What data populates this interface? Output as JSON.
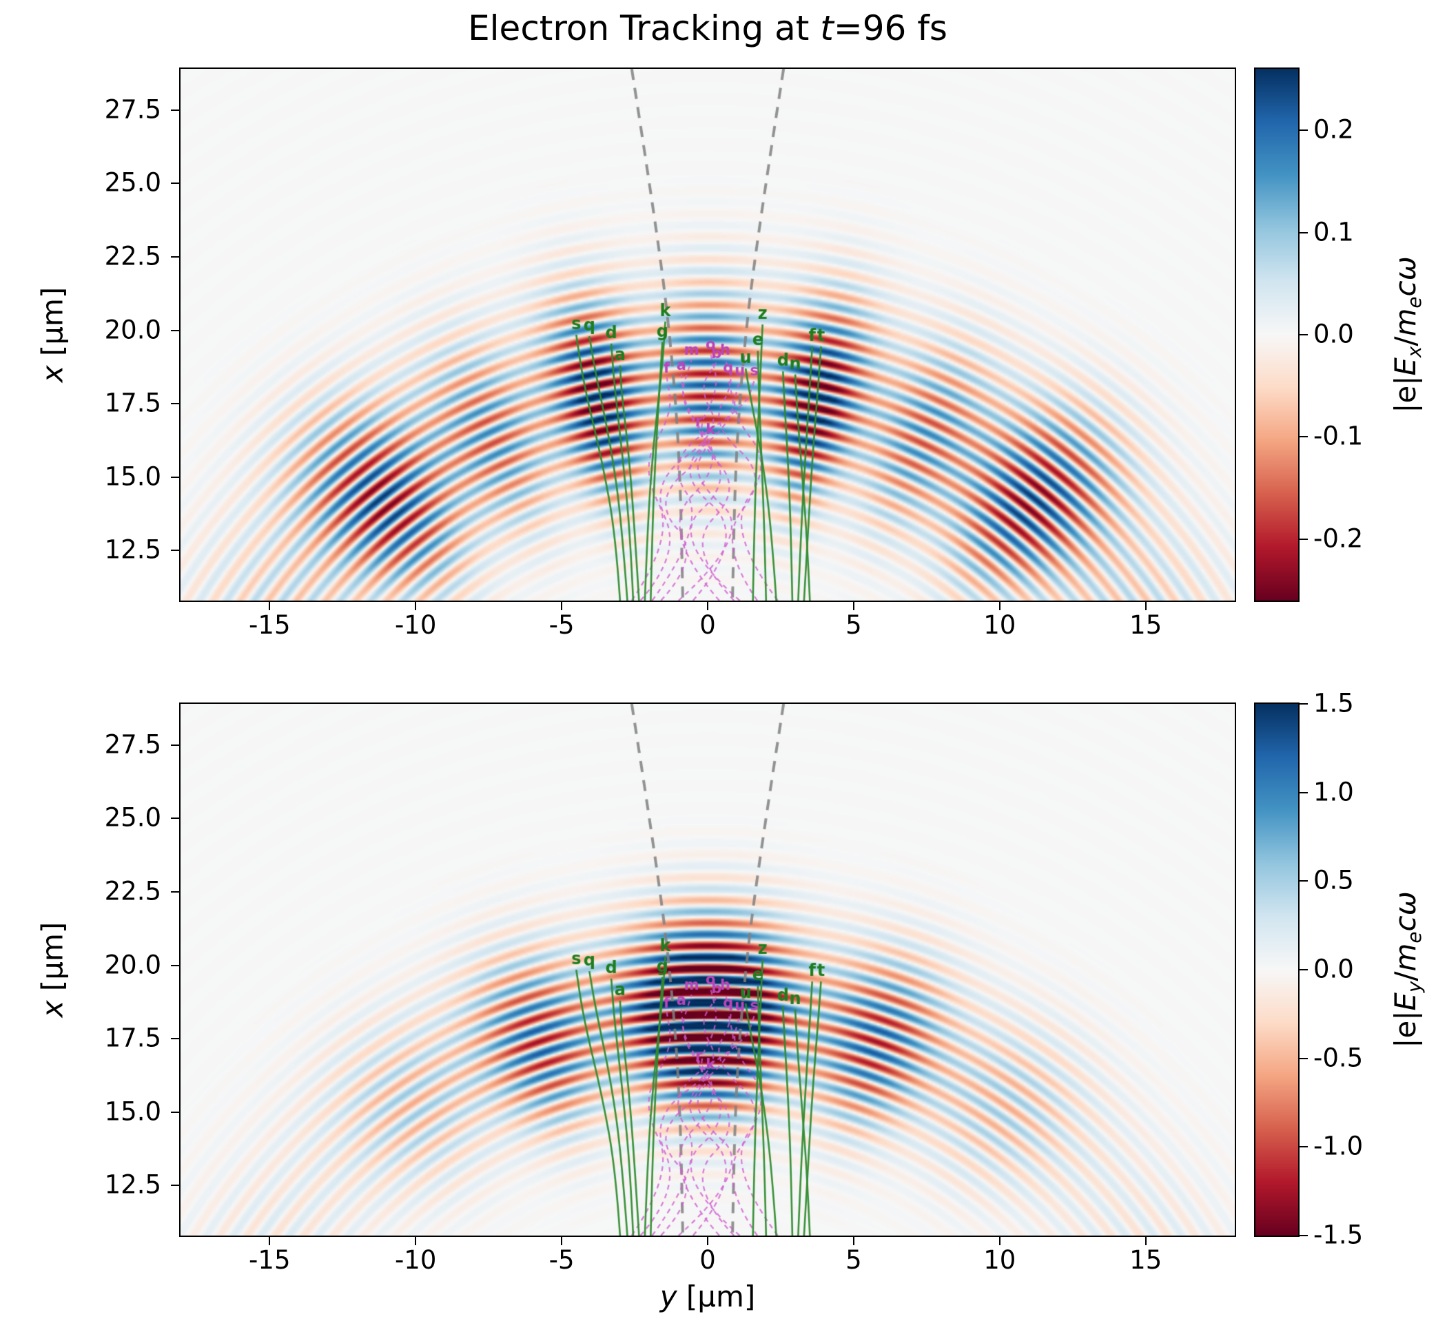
{
  "chart_data": {
    "type": "heatmap",
    "title": [
      {
        "t": "Electron Tracking at "
      },
      {
        "t": "t",
        "i": true
      },
      {
        "t": "=96 fs"
      }
    ],
    "time_fs": 96,
    "colormap": {
      "name": "RdBu",
      "stops": [
        [
          103,
          0,
          31
        ],
        [
          178,
          24,
          43
        ],
        [
          214,
          96,
          77
        ],
        [
          244,
          165,
          130
        ],
        [
          253,
          219,
          199
        ],
        [
          247,
          247,
          247
        ],
        [
          209,
          229,
          240
        ],
        [
          146,
          197,
          222
        ],
        [
          67,
          147,
          195
        ],
        [
          33,
          102,
          172
        ],
        [
          5,
          48,
          97
        ]
      ]
    },
    "axes": {
      "x": {
        "label": [
          {
            "t": "y",
            "i": true
          },
          {
            "t": " [μm]"
          }
        ],
        "range": [
          -18.05,
          18.05
        ],
        "ticks": [
          {
            "v": -15,
            "label": "-15"
          },
          {
            "v": -10,
            "label": "-10"
          },
          {
            "v": -5,
            "label": "-5"
          },
          {
            "v": 0,
            "label": "0"
          },
          {
            "v": 5,
            "label": "5"
          },
          {
            "v": 10,
            "label": "10"
          },
          {
            "v": 15,
            "label": "15"
          }
        ]
      },
      "y": {
        "label": [
          {
            "t": "x",
            "i": true
          },
          {
            "t": " [μm]"
          }
        ],
        "range": [
          10.8,
          28.9
        ],
        "ticks": [
          {
            "v": 27.5,
            "label": "27.5"
          },
          {
            "v": 25.0,
            "label": "25.0"
          },
          {
            "v": 22.5,
            "label": "22.5"
          },
          {
            "v": 20.0,
            "label": "20.0"
          },
          {
            "v": 17.5,
            "label": "17.5"
          },
          {
            "v": 15.0,
            "label": "15.0"
          },
          {
            "v": 12.5,
            "label": "12.5"
          }
        ]
      }
    },
    "panels": [
      {
        "id": "Ex",
        "quantity": "normalized electric field x-component",
        "colorbar": {
          "label": [
            {
              "t": "|e|"
            },
            {
              "t": "E",
              "i": true
            },
            {
              "t": "x",
              "i": true,
              "sub": true
            },
            {
              "t": "/"
            },
            {
              "t": "m",
              "i": true
            },
            {
              "t": "e",
              "i": true,
              "sub": true
            },
            {
              "t": "c",
              "i": true
            },
            {
              "t": "ω",
              "i": true
            }
          ],
          "range": [
            -0.26,
            0.26
          ],
          "ticks": [
            {
              "v": 0.2,
              "label": "0.2"
            },
            {
              "v": 0.1,
              "label": "0.1"
            },
            {
              "v": 0.0,
              "label": "0.0"
            },
            {
              "v": -0.1,
              "label": "-0.1"
            },
            {
              "v": -0.2,
              "label": "-0.2"
            }
          ]
        },
        "field": {
          "wavelength": 0.78,
          "phase": 0.0,
          "gain": 1.15,
          "radial": {
            "r0": 18.0,
            "sigma": 3.4
          },
          "lobes": [
            {
              "theta": 0.0,
              "sigma": 0.1,
              "amp": 0.75
            },
            {
              "theta": 0.21,
              "sigma": 0.085,
              "amp": 1.0
            },
            {
              "theta": 0.42,
              "sigma": 0.1,
              "amp": 0.55
            },
            {
              "theta": 0.66,
              "sigma": 0.13,
              "amp": 0.8
            },
            {
              "theta": 0.95,
              "sigma": 0.22,
              "amp": 0.25
            }
          ]
        }
      },
      {
        "id": "Ey",
        "quantity": "normalized electric field y-component",
        "colorbar": {
          "label": [
            {
              "t": "|e|"
            },
            {
              "t": "E",
              "i": true
            },
            {
              "t": "y",
              "i": true,
              "sub": true
            },
            {
              "t": "/"
            },
            {
              "t": "m",
              "i": true
            },
            {
              "t": "e",
              "i": true,
              "sub": true
            },
            {
              "t": "c",
              "i": true
            },
            {
              "t": "ω",
              "i": true
            }
          ],
          "range": [
            -1.5,
            1.5
          ],
          "ticks": [
            {
              "v": 1.5,
              "label": "1.5"
            },
            {
              "v": 1.0,
              "label": "1.0"
            },
            {
              "v": 0.5,
              "label": "0.5"
            },
            {
              "v": 0.0,
              "label": "0.0"
            },
            {
              "v": -0.5,
              "label": "-0.5"
            },
            {
              "v": -1.0,
              "label": "-1.0"
            },
            {
              "v": -1.5,
              "label": "-1.5"
            }
          ]
        },
        "field": {
          "wavelength": 0.78,
          "phase": 1.5708,
          "gain": 1.8,
          "radial": {
            "r0": 18.3,
            "sigma": 3.0
          },
          "lobes": [
            {
              "theta": 0.0,
              "sigma": 0.15,
              "amp": 1.0
            },
            {
              "theta": 0.32,
              "sigma": 0.11,
              "amp": 0.45
            },
            {
              "theta": 0.58,
              "sigma": 0.16,
              "amp": 0.2
            },
            {
              "theta": 0.95,
              "sigma": 0.25,
              "amp": 0.08
            }
          ]
        }
      }
    ],
    "overlays": {
      "cone": {
        "color": "#808080",
        "style": "dashed",
        "lines": [
          [
            [
              -2.6,
              28.9
            ],
            [
              -1.75,
              23.5
            ],
            [
              -1.25,
              19.5
            ],
            [
              -0.95,
              15.5
            ],
            [
              -0.85,
              10.8
            ]
          ],
          [
            [
              2.6,
              28.9
            ],
            [
              1.75,
              23.5
            ],
            [
              1.25,
              19.5
            ],
            [
              0.95,
              15.5
            ],
            [
              0.85,
              10.8
            ]
          ]
        ]
      },
      "tracked_electrons": {
        "color": "#2e8b2e",
        "letter_color": "#1e7d1e",
        "style": "solid",
        "tracks": [
          {
            "letter": "s",
            "points": [
              [
                -3.0,
                10.8
              ],
              [
                -3.15,
                13.0
              ],
              [
                -3.6,
                15.5
              ],
              [
                -4.25,
                18.2
              ],
              [
                -4.5,
                19.85
              ]
            ]
          },
          {
            "letter": "q",
            "points": [
              [
                -2.75,
                10.8
              ],
              [
                -2.95,
                13.5
              ],
              [
                -3.3,
                16.0
              ],
              [
                -3.85,
                18.6
              ],
              [
                -4.05,
                19.8
              ]
            ]
          },
          {
            "letter": "d",
            "points": [
              [
                -2.55,
                10.8
              ],
              [
                -2.65,
                13.0
              ],
              [
                -2.9,
                15.6
              ],
              [
                -3.2,
                18.2
              ],
              [
                -3.3,
                19.55
              ]
            ]
          },
          {
            "letter": "a",
            "points": [
              [
                -2.35,
                10.8
              ],
              [
                -2.5,
                13.2
              ],
              [
                -2.7,
                15.8
              ],
              [
                -2.95,
                17.9
              ],
              [
                -3.0,
                18.8
              ]
            ]
          },
          {
            "letter": "k",
            "points": [
              [
                -2.15,
                10.8
              ],
              [
                -2.05,
                13.5
              ],
              [
                -1.85,
                16.2
              ],
              [
                -1.55,
                18.8
              ],
              [
                -1.45,
                20.3
              ]
            ]
          },
          {
            "letter": "g",
            "points": [
              [
                -1.95,
                10.8
              ],
              [
                -1.9,
                13.0
              ],
              [
                -1.8,
                15.5
              ],
              [
                -1.65,
                18.0
              ],
              [
                -1.55,
                19.6
              ]
            ]
          },
          {
            "letter": "z",
            "points": [
              [
                1.55,
                10.8
              ],
              [
                1.6,
                13.5
              ],
              [
                1.7,
                16.2
              ],
              [
                1.82,
                18.8
              ],
              [
                1.88,
                20.2
              ]
            ]
          },
          {
            "letter": "e",
            "points": [
              [
                2.0,
                10.8
              ],
              [
                1.95,
                13.0
              ],
              [
                1.85,
                15.5
              ],
              [
                1.75,
                18.0
              ],
              [
                1.72,
                19.3
              ]
            ]
          },
          {
            "letter": "u",
            "points": [
              [
                2.35,
                10.8
              ],
              [
                2.2,
                13.0
              ],
              [
                1.9,
                15.5
              ],
              [
                1.45,
                17.8
              ],
              [
                1.3,
                18.7
              ]
            ]
          },
          {
            "letter": "d",
            "points": [
              [
                2.9,
                10.8
              ],
              [
                2.85,
                13.2
              ],
              [
                2.75,
                15.6
              ],
              [
                2.62,
                17.7
              ],
              [
                2.58,
                18.6
              ]
            ]
          },
          {
            "letter": "f",
            "points": [
              [
                3.1,
                10.8
              ],
              [
                3.2,
                13.2
              ],
              [
                3.35,
                15.8
              ],
              [
                3.5,
                18.1
              ],
              [
                3.58,
                19.45
              ]
            ]
          },
          {
            "letter": "t",
            "points": [
              [
                3.3,
                10.8
              ],
              [
                3.45,
                13.5
              ],
              [
                3.62,
                16.1
              ],
              [
                3.8,
                18.3
              ],
              [
                3.88,
                19.45
              ]
            ]
          },
          {
            "letter": "n",
            "points": [
              [
                3.5,
                10.8
              ],
              [
                3.4,
                13.0
              ],
              [
                3.2,
                15.5
              ],
              [
                3.05,
                17.5
              ],
              [
                3.0,
                18.5
              ]
            ]
          }
        ]
      },
      "reference_electrons": {
        "color": "#cf5ccf",
        "letter_color": "#bb44bb",
        "style": "dashed",
        "tracks": [
          {
            "letter": "m",
            "points": [
              [
                -1.6,
                10.8
              ],
              [
                -0.2,
                12.3
              ],
              [
                -1.9,
                14.2
              ],
              [
                0.2,
                16.0
              ],
              [
                -1.0,
                17.6
              ],
              [
                -0.55,
                19.0
              ]
            ]
          },
          {
            "letter": "o",
            "points": [
              [
                0.9,
                10.8
              ],
              [
                -0.8,
                12.6
              ],
              [
                1.2,
                14.6
              ],
              [
                -0.5,
                16.4
              ],
              [
                0.4,
                18.0
              ],
              [
                0.1,
                19.2
              ]
            ]
          },
          {
            "letter": "b",
            "points": [
              [
                -2.3,
                10.8
              ],
              [
                -0.9,
                12.4
              ],
              [
                -2.0,
                14.8
              ],
              [
                0.5,
                16.6
              ],
              [
                -0.3,
                18.0
              ],
              [
                0.3,
                18.9
              ]
            ]
          },
          {
            "letter": "h",
            "points": [
              [
                1.7,
                10.8
              ],
              [
                0.3,
                12.8
              ],
              [
                2.1,
                15.0
              ],
              [
                0.1,
                16.8
              ],
              [
                0.9,
                18.2
              ],
              [
                0.6,
                19.0
              ]
            ]
          },
          {
            "letter": "q",
            "points": [
              [
                -0.5,
                10.8
              ],
              [
                1.4,
                13.0
              ],
              [
                -1.2,
                15.2
              ],
              [
                1.0,
                17.0
              ],
              [
                0.7,
                18.4
              ]
            ]
          },
          {
            "letter": "u",
            "points": [
              [
                2.4,
                10.8
              ],
              [
                0.6,
                13.2
              ],
              [
                2.2,
                15.4
              ],
              [
                0.8,
                17.2
              ],
              [
                1.1,
                18.3
              ]
            ]
          },
          {
            "letter": "s",
            "points": [
              [
                -1.9,
                10.8
              ],
              [
                0.0,
                13.4
              ],
              [
                -1.5,
                15.6
              ],
              [
                1.3,
                17.4
              ],
              [
                1.6,
                18.3
              ]
            ]
          },
          {
            "letter": "r",
            "points": [
              [
                1.1,
                10.8
              ],
              [
                -1.3,
                12.9
              ],
              [
                0.8,
                14.8
              ],
              [
                -0.3,
                16.6
              ]
            ]
          },
          {
            "letter": "k",
            "points": [
              [
                -1.0,
                10.8
              ],
              [
                1.6,
                13.1
              ],
              [
                -0.6,
                15.0
              ],
              [
                0.1,
                16.3
              ]
            ]
          },
          {
            "letter": "f",
            "points": [
              [
                -2.6,
                10.8
              ],
              [
                -1.1,
                13.0
              ],
              [
                -2.3,
                15.3
              ],
              [
                -1.2,
                17.2
              ],
              [
                -1.4,
                18.4
              ]
            ]
          },
          {
            "letter": "a",
            "points": [
              [
                0.4,
                10.8
              ],
              [
                -1.7,
                13.2
              ],
              [
                0.6,
                15.5
              ],
              [
                -0.8,
                17.4
              ],
              [
                -0.9,
                18.5
              ]
            ]
          }
        ]
      }
    }
  }
}
